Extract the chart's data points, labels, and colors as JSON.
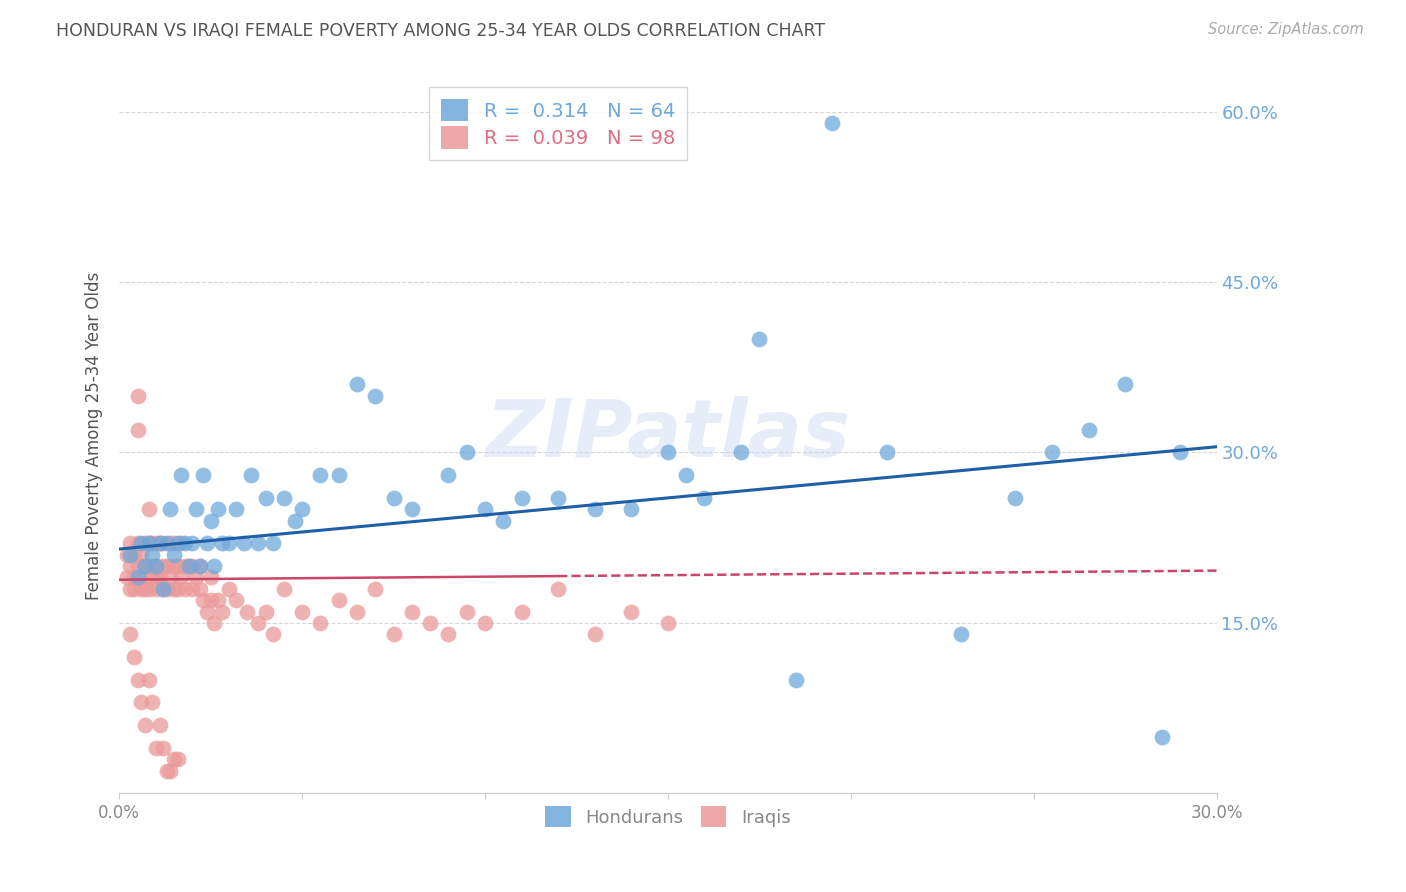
{
  "title": "HONDURAN VS IRAQI FEMALE POVERTY AMONG 25-34 YEAR OLDS CORRELATION CHART",
  "source": "Source: ZipAtlas.com",
  "ylabel": "Female Poverty Among 25-34 Year Olds",
  "xlim": [
    0.0,
    0.3
  ],
  "ylim": [
    0.0,
    0.63
  ],
  "yticks": [
    0.0,
    0.15,
    0.3,
    0.45,
    0.6
  ],
  "xticks": [
    0.0,
    0.05,
    0.1,
    0.15,
    0.2,
    0.25,
    0.3
  ],
  "xtick_labels": [
    "0.0%",
    "",
    "",
    "",
    "",
    "",
    "30.0%"
  ],
  "ytick_labels_right": [
    "",
    "15.0%",
    "30.0%",
    "45.0%",
    "60.0%"
  ],
  "honduran_color": "#6fa8dc",
  "iraqi_color": "#ea9999",
  "honduran_R": 0.314,
  "honduran_N": 64,
  "iraqi_R": 0.039,
  "iraqi_N": 98,
  "legend_label_1": "Hondurans",
  "legend_label_2": "Iraqis",
  "watermark": "ZIPatlas",
  "background_color": "#ffffff",
  "grid_color": "#cccccc",
  "title_color": "#555555",
  "honduran_line_color": "#1f5fa6",
  "iraqi_line_color": "#cc4466",
  "hon_line_x0": 0.0,
  "hon_line_y0": 0.215,
  "hon_line_x1": 0.3,
  "hon_line_y1": 0.305,
  "iraqi_line_x0": 0.0,
  "iraqi_line_y0": 0.188,
  "iraqi_line_x1": 0.3,
  "iraqi_line_y1": 0.196,
  "iraqi_line_solid_end": 0.12,
  "honduran_x": [
    0.003,
    0.005,
    0.006,
    0.007,
    0.008,
    0.009,
    0.01,
    0.011,
    0.012,
    0.013,
    0.014,
    0.015,
    0.016,
    0.017,
    0.018,
    0.019,
    0.02,
    0.021,
    0.022,
    0.023,
    0.024,
    0.025,
    0.026,
    0.027,
    0.028,
    0.03,
    0.032,
    0.034,
    0.036,
    0.038,
    0.04,
    0.042,
    0.045,
    0.048,
    0.05,
    0.055,
    0.06,
    0.065,
    0.07,
    0.075,
    0.08,
    0.09,
    0.095,
    0.1,
    0.105,
    0.11,
    0.12,
    0.13,
    0.14,
    0.15,
    0.155,
    0.16,
    0.17,
    0.175,
    0.185,
    0.195,
    0.21,
    0.23,
    0.245,
    0.255,
    0.265,
    0.275,
    0.285,
    0.29
  ],
  "honduran_y": [
    0.21,
    0.19,
    0.22,
    0.2,
    0.22,
    0.21,
    0.2,
    0.22,
    0.18,
    0.22,
    0.25,
    0.21,
    0.22,
    0.28,
    0.22,
    0.2,
    0.22,
    0.25,
    0.2,
    0.28,
    0.22,
    0.24,
    0.2,
    0.25,
    0.22,
    0.22,
    0.25,
    0.22,
    0.28,
    0.22,
    0.26,
    0.22,
    0.26,
    0.24,
    0.25,
    0.28,
    0.28,
    0.36,
    0.35,
    0.26,
    0.25,
    0.28,
    0.3,
    0.25,
    0.24,
    0.26,
    0.26,
    0.25,
    0.25,
    0.3,
    0.28,
    0.26,
    0.3,
    0.4,
    0.1,
    0.59,
    0.3,
    0.14,
    0.26,
    0.3,
    0.32,
    0.36,
    0.05,
    0.3
  ],
  "iraqi_x": [
    0.002,
    0.002,
    0.003,
    0.003,
    0.003,
    0.004,
    0.004,
    0.004,
    0.005,
    0.005,
    0.005,
    0.005,
    0.006,
    0.006,
    0.006,
    0.007,
    0.007,
    0.007,
    0.007,
    0.008,
    0.008,
    0.008,
    0.008,
    0.009,
    0.009,
    0.009,
    0.01,
    0.01,
    0.01,
    0.01,
    0.011,
    0.011,
    0.012,
    0.012,
    0.012,
    0.013,
    0.013,
    0.014,
    0.014,
    0.015,
    0.015,
    0.015,
    0.016,
    0.016,
    0.017,
    0.017,
    0.018,
    0.018,
    0.019,
    0.02,
    0.02,
    0.021,
    0.022,
    0.022,
    0.023,
    0.024,
    0.025,
    0.025,
    0.026,
    0.027,
    0.028,
    0.03,
    0.032,
    0.035,
    0.038,
    0.04,
    0.042,
    0.045,
    0.05,
    0.055,
    0.06,
    0.065,
    0.07,
    0.075,
    0.08,
    0.085,
    0.09,
    0.095,
    0.1,
    0.11,
    0.12,
    0.13,
    0.14,
    0.15,
    0.003,
    0.004,
    0.005,
    0.006,
    0.007,
    0.008,
    0.009,
    0.01,
    0.011,
    0.012,
    0.013,
    0.014,
    0.015,
    0.016
  ],
  "iraqi_y": [
    0.19,
    0.21,
    0.2,
    0.18,
    0.22,
    0.19,
    0.21,
    0.18,
    0.35,
    0.32,
    0.2,
    0.22,
    0.19,
    0.21,
    0.18,
    0.2,
    0.22,
    0.18,
    0.2,
    0.22,
    0.2,
    0.25,
    0.18,
    0.2,
    0.22,
    0.19,
    0.22,
    0.2,
    0.18,
    0.19,
    0.22,
    0.19,
    0.22,
    0.2,
    0.18,
    0.2,
    0.18,
    0.22,
    0.19,
    0.2,
    0.22,
    0.18,
    0.2,
    0.18,
    0.22,
    0.19,
    0.2,
    0.18,
    0.2,
    0.2,
    0.18,
    0.19,
    0.18,
    0.2,
    0.17,
    0.16,
    0.19,
    0.17,
    0.15,
    0.17,
    0.16,
    0.18,
    0.17,
    0.16,
    0.15,
    0.16,
    0.14,
    0.18,
    0.16,
    0.15,
    0.17,
    0.16,
    0.18,
    0.14,
    0.16,
    0.15,
    0.14,
    0.16,
    0.15,
    0.16,
    0.18,
    0.14,
    0.16,
    0.15,
    0.14,
    0.12,
    0.1,
    0.08,
    0.06,
    0.1,
    0.08,
    0.04,
    0.06,
    0.04,
    0.02,
    0.02,
    0.03,
    0.03
  ]
}
